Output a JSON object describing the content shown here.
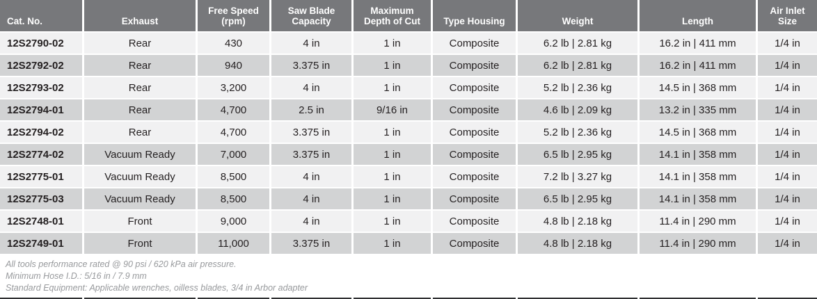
{
  "colors": {
    "page-bg": "#FFFFFF",
    "header-bg": "#77787B",
    "header-text": "#FFFFFF",
    "row-light": "#F1F1F2",
    "row-dark": "#D2D3D4",
    "cell-text": "#231F20",
    "note-text": "#97999C",
    "divider": "#2E2F31"
  },
  "table": {
    "columns": [
      {
        "id": "cat-no",
        "label": "Cat. No."
      },
      {
        "id": "exhaust",
        "label": "Exhaust"
      },
      {
        "id": "free-speed",
        "label": "Free Speed\n(rpm)"
      },
      {
        "id": "saw-blade-capacity",
        "label": "Saw Blade\nCapacity"
      },
      {
        "id": "max-depth-of-cut",
        "label": "Maximum\nDepth of Cut"
      },
      {
        "id": "type-housing",
        "label": "Type Housing"
      },
      {
        "id": "weight",
        "label": "Weight"
      },
      {
        "id": "length",
        "label": "Length"
      },
      {
        "id": "air-inlet-size",
        "label": "Air Inlet\nSize"
      }
    ],
    "rows": [
      [
        "12S2790-02",
        "Rear",
        "430",
        "4 in",
        "1 in",
        "Composite",
        "6.2 lb | 2.81 kg",
        "16.2 in | 411 mm",
        "1/4 in"
      ],
      [
        "12S2792-02",
        "Rear",
        "940",
        "3.375 in",
        "1 in",
        "Composite",
        "6.2 lb | 2.81 kg",
        "16.2 in | 411 mm",
        "1/4 in"
      ],
      [
        "12S2793-02",
        "Rear",
        "3,200",
        "4 in",
        "1 in",
        "Composite",
        "5.2 lb | 2.36 kg",
        "14.5 in | 368 mm",
        "1/4 in"
      ],
      [
        "12S2794-01",
        "Rear",
        "4,700",
        "2.5 in",
        "9/16 in",
        "Composite",
        "4.6 lb | 2.09 kg",
        "13.2 in | 335 mm",
        "1/4 in"
      ],
      [
        "12S2794-02",
        "Rear",
        "4,700",
        "3.375 in",
        "1 in",
        "Composite",
        "5.2 lb | 2.36 kg",
        "14.5 in | 368 mm",
        "1/4 in"
      ],
      [
        "12S2774-02",
        "Vacuum Ready",
        "7,000",
        "3.375 in",
        "1 in",
        "Composite",
        "6.5 lb | 2.95 kg",
        "14.1 in | 358 mm",
        "1/4 in"
      ],
      [
        "12S2775-01",
        "Vacuum Ready",
        "8,500",
        "4 in",
        "1 in",
        "Composite",
        "7.2 lb | 3.27 kg",
        "14.1 in | 358 mm",
        "1/4 in"
      ],
      [
        "12S2775-03",
        "Vacuum Ready",
        "8,500",
        "4 in",
        "1 in",
        "Composite",
        "6.5 lb | 2.95 kg",
        "14.1 in | 358 mm",
        "1/4 in"
      ],
      [
        "12S2748-01",
        "Front",
        "9,000",
        "4 in",
        "1 in",
        "Composite",
        "4.8 lb | 2.18 kg",
        "11.4 in | 290 mm",
        "1/4 in"
      ],
      [
        "12S2749-01",
        "Front",
        "11,000",
        "3.375 in",
        "1 in",
        "Composite",
        "4.8 lb | 2.18 kg",
        "11.4 in | 290 mm",
        "1/4 in"
      ]
    ]
  },
  "footnotes": [
    "All tools performance rated @ 90 psi / 620 kPa air pressure.",
    "Minimum Hose I.D.: 5/16 in / 7.9 mm",
    "Standard Equipment: Applicable wrenches, oilless blades, 3/4 in Arbor adapter"
  ]
}
